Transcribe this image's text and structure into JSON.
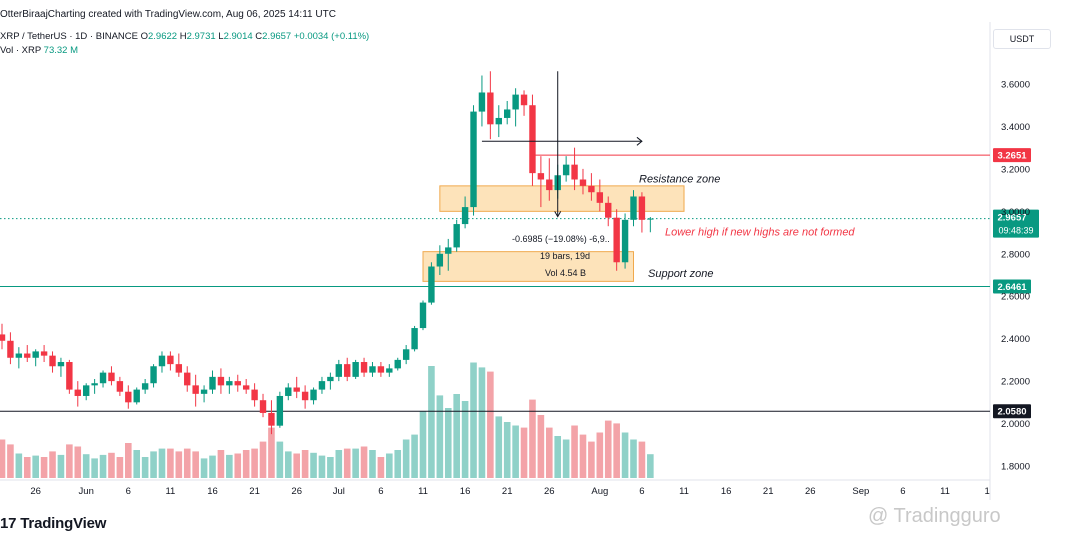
{
  "header": {
    "byline": "OtterBiraajCharting created with TradingView.com, Aug 06, 2025 14:11 UTC",
    "symbol": "XRP / TetherUS · 1D · BINANCE",
    "o_label": "O",
    "o_value": "2.9622",
    "h_label": "H",
    "h_value": "2.9731",
    "l_label": "L",
    "l_value": "2.9014",
    "c_label": "C",
    "c_value": "2.9657",
    "change": "+0.0034 (+0.11%)",
    "vol_label": "Vol · XRP",
    "vol_value": "73.32 M"
  },
  "currency": "USDT",
  "brand": {
    "logo_text": "TradingView",
    "watermark": "@ Tradingguro"
  },
  "colors": {
    "up": "#089981",
    "down": "#f23645",
    "vol_up": "#8fd1c8",
    "vol_down": "#f3a3a8",
    "zone": "#fcd9a3",
    "zone_border": "#f0a94d"
  },
  "chart_data": {
    "type": "candlestick",
    "y_range": [
      1.7,
      3.72
    ],
    "y_ticks": [
      "3.6000",
      "3.4000",
      "3.2000",
      "3.0000",
      "2.8000",
      "2.6000",
      "2.4000",
      "2.2000",
      "2.0000",
      "1.8000"
    ],
    "y_tick_values": [
      3.6,
      3.4,
      3.2,
      3.0,
      2.8,
      2.6,
      2.4,
      2.2,
      2.0,
      1.8
    ],
    "x_tick_labels": [
      "26",
      "Jun",
      "6",
      "11",
      "16",
      "21",
      "26",
      "Jul",
      "6",
      "11",
      "16",
      "21",
      "26",
      "Aug",
      "6",
      "11",
      "16",
      "21",
      "26",
      "Sep",
      "6",
      "11",
      "1"
    ],
    "x_tick_dates": [
      "2025-05-26",
      "2025-06-01",
      "2025-06-06",
      "2025-06-11",
      "2025-06-16",
      "2025-06-21",
      "2025-06-26",
      "2025-07-01",
      "2025-07-06",
      "2025-07-11",
      "2025-07-16",
      "2025-07-21",
      "2025-07-26",
      "2025-08-01",
      "2025-08-06",
      "2025-08-11",
      "2025-08-16",
      "2025-08-21",
      "2025-08-26",
      "2025-09-01",
      "2025-09-06",
      "2025-09-11",
      "2025-09-16"
    ],
    "first_date": "2025-05-22",
    "candles": [
      [
        2.42,
        2.47,
        2.35,
        2.39,
        55
      ],
      [
        2.39,
        2.43,
        2.28,
        2.31,
        48
      ],
      [
        2.31,
        2.36,
        2.26,
        2.33,
        35
      ],
      [
        2.33,
        2.37,
        2.29,
        2.31,
        30
      ],
      [
        2.31,
        2.35,
        2.27,
        2.34,
        32
      ],
      [
        2.34,
        2.37,
        2.29,
        2.32,
        30
      ],
      [
        2.32,
        2.34,
        2.24,
        2.27,
        38
      ],
      [
        2.27,
        2.31,
        2.22,
        2.29,
        33
      ],
      [
        2.29,
        2.3,
        2.14,
        2.16,
        48
      ],
      [
        2.16,
        2.2,
        2.08,
        2.13,
        45
      ],
      [
        2.13,
        2.19,
        2.11,
        2.18,
        34
      ],
      [
        2.18,
        2.21,
        2.14,
        2.19,
        28
      ],
      [
        2.19,
        2.25,
        2.17,
        2.24,
        33
      ],
      [
        2.24,
        2.27,
        2.18,
        2.2,
        36
      ],
      [
        2.2,
        2.22,
        2.13,
        2.15,
        30
      ],
      [
        2.15,
        2.18,
        2.07,
        2.1,
        50
      ],
      [
        2.1,
        2.17,
        2.09,
        2.16,
        40
      ],
      [
        2.16,
        2.21,
        2.14,
        2.19,
        30
      ],
      [
        2.19,
        2.28,
        2.17,
        2.27,
        38
      ],
      [
        2.27,
        2.34,
        2.24,
        2.32,
        42
      ],
      [
        2.32,
        2.34,
        2.25,
        2.28,
        42
      ],
      [
        2.28,
        2.33,
        2.22,
        2.24,
        38
      ],
      [
        2.24,
        2.27,
        2.15,
        2.18,
        42
      ],
      [
        2.18,
        2.23,
        2.08,
        2.14,
        38
      ],
      [
        2.14,
        2.18,
        2.1,
        2.16,
        28
      ],
      [
        2.16,
        2.25,
        2.14,
        2.22,
        32
      ],
      [
        2.22,
        2.26,
        2.14,
        2.18,
        40
      ],
      [
        2.18,
        2.22,
        2.14,
        2.2,
        33
      ],
      [
        2.2,
        2.23,
        2.15,
        2.18,
        35
      ],
      [
        2.18,
        2.21,
        2.14,
        2.16,
        40
      ],
      [
        2.16,
        2.19,
        2.08,
        2.11,
        42
      ],
      [
        2.11,
        2.14,
        2.03,
        2.05,
        52
      ],
      [
        2.05,
        2.11,
        1.95,
        1.99,
        72
      ],
      [
        1.99,
        2.15,
        1.98,
        2.13,
        52
      ],
      [
        2.13,
        2.19,
        2.11,
        2.17,
        38
      ],
      [
        2.17,
        2.22,
        2.12,
        2.15,
        35
      ],
      [
        2.15,
        2.18,
        2.07,
        2.11,
        40
      ],
      [
        2.11,
        2.17,
        2.09,
        2.16,
        36
      ],
      [
        2.16,
        2.22,
        2.14,
        2.2,
        32
      ],
      [
        2.2,
        2.24,
        2.16,
        2.22,
        30
      ],
      [
        2.22,
        2.3,
        2.2,
        2.28,
        40
      ],
      [
        2.28,
        2.31,
        2.2,
        2.22,
        42
      ],
      [
        2.22,
        2.3,
        2.21,
        2.29,
        42
      ],
      [
        2.29,
        2.31,
        2.22,
        2.24,
        45
      ],
      [
        2.24,
        2.29,
        2.22,
        2.27,
        40
      ],
      [
        2.27,
        2.29,
        2.22,
        2.24,
        30
      ],
      [
        2.24,
        2.28,
        2.22,
        2.26,
        35
      ],
      [
        2.26,
        2.31,
        2.25,
        2.3,
        40
      ],
      [
        2.3,
        2.37,
        2.28,
        2.35,
        55
      ],
      [
        2.35,
        2.46,
        2.34,
        2.45,
        62
      ],
      [
        2.45,
        2.58,
        2.44,
        2.57,
        95
      ],
      [
        2.57,
        2.76,
        2.56,
        2.74,
        160
      ],
      [
        2.74,
        2.84,
        2.7,
        2.8,
        118
      ],
      [
        2.8,
        2.87,
        2.72,
        2.83,
        100
      ],
      [
        2.83,
        2.96,
        2.81,
        2.94,
        120
      ],
      [
        2.94,
        3.07,
        2.92,
        3.02,
        110
      ],
      [
        3.02,
        3.5,
        2.98,
        3.47,
        165
      ],
      [
        3.47,
        3.64,
        3.4,
        3.56,
        158
      ],
      [
        3.56,
        3.66,
        3.34,
        3.41,
        152
      ],
      [
        3.41,
        3.5,
        3.35,
        3.44,
        88
      ],
      [
        3.44,
        3.52,
        3.41,
        3.48,
        80
      ],
      [
        3.48,
        3.58,
        3.4,
        3.55,
        75
      ],
      [
        3.55,
        3.57,
        3.45,
        3.5,
        72
      ],
      [
        3.5,
        3.55,
        3.12,
        3.18,
        112
      ],
      [
        3.18,
        3.26,
        3.02,
        3.15,
        90
      ],
      [
        3.15,
        3.25,
        3.05,
        3.1,
        72
      ],
      [
        3.1,
        3.22,
        3.06,
        3.17,
        60
      ],
      [
        3.17,
        3.26,
        3.14,
        3.22,
        55
      ],
      [
        3.22,
        3.3,
        3.1,
        3.15,
        75
      ],
      [
        3.15,
        3.2,
        3.08,
        3.12,
        62
      ],
      [
        3.12,
        3.18,
        3.05,
        3.09,
        52
      ],
      [
        3.09,
        3.15,
        3.0,
        3.04,
        65
      ],
      [
        3.04,
        3.07,
        2.93,
        2.97,
        82
      ],
      [
        2.97,
        3.01,
        2.72,
        2.76,
        78
      ],
      [
        2.76,
        2.99,
        2.73,
        2.96,
        65
      ],
      [
        2.96,
        3.1,
        2.93,
        3.07,
        55
      ],
      [
        3.07,
        3.09,
        2.9,
        2.96,
        52
      ],
      [
        2.9622,
        2.9731,
        2.9014,
        2.9657,
        34
      ]
    ],
    "horizontal_levels": [
      {
        "price": 3.2651,
        "label": "3.2651",
        "color": "#f23645"
      },
      {
        "price": 2.6461,
        "label": "2.6461",
        "color": "#089981"
      },
      {
        "price": 2.058,
        "label": "2.0580",
        "color": "#131722"
      }
    ],
    "current_price": {
      "label": "2.9657",
      "countdown": "09:48:39"
    },
    "annotations": {
      "resistance": "Resistance zone",
      "support": "Support zone",
      "lower_high": "Lower high if new highs are not formed",
      "measure_line1": "-0.6985 (−19.08%) -6,9..",
      "measure_line2": "19 bars, 19d",
      "measure_line3": "Vol 4.54 B"
    },
    "zones": [
      {
        "name": "Resistance zone",
        "top": 3.12,
        "bottom": 3.0,
        "from": "2025-07-13",
        "to": "2025-08-11"
      },
      {
        "name": "Support zone",
        "top": 2.81,
        "bottom": 2.67,
        "from": "2025-07-11",
        "to": "2025-08-05"
      }
    ]
  }
}
